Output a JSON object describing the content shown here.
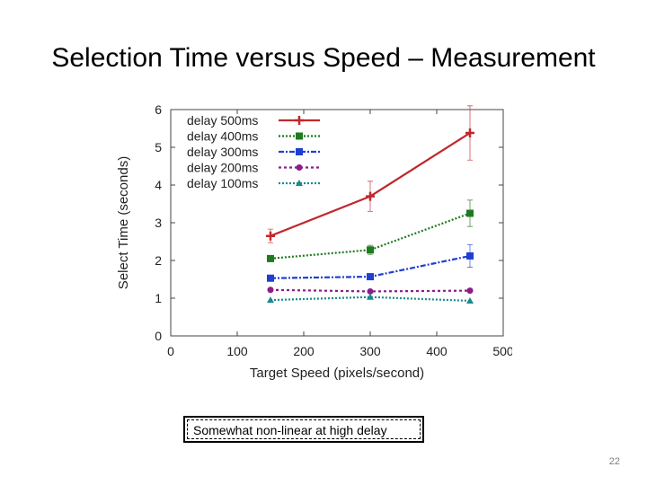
{
  "slide": {
    "title": "Selection Time versus Speed – Measurement",
    "callout": "Somewhat non-linear at high delay",
    "page_number": "22"
  },
  "chart_data": {
    "type": "line",
    "title": "",
    "xlabel": "Target Speed (pixels/second)",
    "ylabel": "Select Time (seconds)",
    "xlim": [
      0,
      500
    ],
    "ylim": [
      0,
      6
    ],
    "xticks": [
      0,
      100,
      200,
      300,
      400,
      500
    ],
    "yticks": [
      0,
      1,
      2,
      3,
      4,
      5,
      6
    ],
    "legend_position": "top-left",
    "x": [
      150,
      300,
      450
    ],
    "series": [
      {
        "name": "delay 500ms",
        "values": [
          2.65,
          3.7,
          5.38
        ],
        "err": [
          0.18,
          0.4,
          0.72
        ],
        "color": "#c0282d",
        "marker": "plus",
        "dash": ""
      },
      {
        "name": "delay 400ms",
        "values": [
          2.05,
          2.28,
          3.25
        ],
        "err": [
          0.05,
          0.12,
          0.35
        ],
        "color": "#1f7a1f",
        "marker": "square",
        "dash": "2,2"
      },
      {
        "name": "delay 300ms",
        "values": [
          1.53,
          1.57,
          2.12
        ],
        "err": [
          0.03,
          0.06,
          0.3
        ],
        "color": "#1f3fd1",
        "marker": "square",
        "dash": "6,2,2,2"
      },
      {
        "name": "delay 200ms",
        "values": [
          1.22,
          1.18,
          1.2
        ],
        "err": [
          0.02,
          0.04,
          0.04
        ],
        "color": "#8a1d8a",
        "marker": "circle",
        "dash": "3,3"
      },
      {
        "name": "delay 100ms",
        "values": [
          0.95,
          1.03,
          0.93
        ],
        "err": [
          0.02,
          0.04,
          0.03
        ],
        "color": "#1a8a8a",
        "marker": "triangle",
        "dash": "2,2"
      }
    ]
  }
}
